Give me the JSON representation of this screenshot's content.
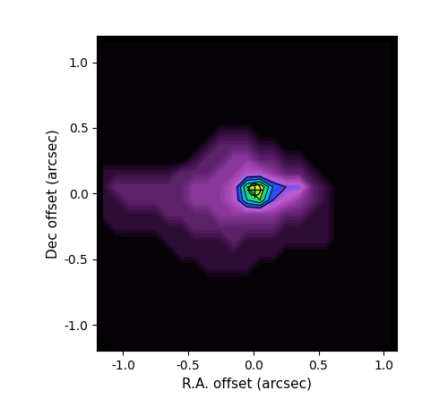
{
  "chart_data": {
    "type": "heatmap",
    "x_label": "R.A. offset (arcsec)",
    "y_label": "Dec offset (arcsec)",
    "xlim": [
      -1.2,
      1.1
    ],
    "ylim": [
      -1.2,
      1.2
    ],
    "xticks": [
      -1.0,
      -0.5,
      0.0,
      0.5,
      1.0
    ],
    "yticks": [
      -1.0,
      -0.5,
      0.0,
      0.5,
      1.0
    ],
    "zlim": [
      0,
      10
    ],
    "contour_levels": [
      5,
      6,
      7,
      8
    ],
    "points": {
      "x": [
        0.01
      ],
      "y": [
        0.03
      ],
      "marker": "circled_plus"
    },
    "x": [
      -1.15,
      -1.05,
      -0.95,
      -0.85,
      -0.75,
      -0.65,
      -0.55,
      -0.45,
      -0.35,
      -0.25,
      -0.15,
      -0.05,
      0.05,
      0.15,
      0.25,
      0.35,
      0.45,
      0.55,
      0.65,
      0.75,
      0.85,
      0.95,
      1.05
    ],
    "y": [
      1.15,
      1.05,
      0.95,
      0.85,
      0.75,
      0.65,
      0.55,
      0.45,
      0.35,
      0.25,
      0.15,
      0.05,
      -0.05,
      -0.15,
      -0.25,
      -0.35,
      -0.45,
      -0.55,
      -0.65,
      -0.75,
      -0.85,
      -0.95,
      -1.05,
      -1.15
    ],
    "cells": [
      [
        0,
        0,
        0,
        0,
        0,
        0,
        0,
        0,
        0,
        0,
        0,
        0,
        0,
        0,
        0,
        0,
        0,
        0,
        0,
        0,
        0,
        0,
        0
      ],
      [
        0,
        0,
        0,
        0,
        0,
        0,
        0,
        0,
        0,
        0,
        0,
        0,
        0,
        0,
        0,
        0,
        0,
        0,
        0,
        0,
        0,
        0,
        0
      ],
      [
        0,
        0,
        0,
        0,
        0,
        0,
        0,
        0,
        0,
        0,
        0,
        0,
        0,
        0,
        0,
        0,
        0,
        0,
        0,
        0,
        0,
        0,
        0
      ],
      [
        0,
        0,
        0,
        0,
        0,
        0,
        0,
        0,
        0,
        0,
        0,
        0,
        0,
        0,
        0,
        0,
        0,
        0,
        0,
        0,
        0,
        0,
        0
      ],
      [
        0,
        0,
        0,
        0,
        0,
        0,
        0,
        0,
        0,
        0,
        0,
        0,
        0,
        0,
        0,
        0,
        0,
        0,
        0,
        0,
        0,
        0,
        0
      ],
      [
        0,
        0,
        0,
        0,
        0,
        0,
        0,
        0,
        0,
        0,
        0,
        0,
        0,
        0,
        0,
        0,
        0,
        0,
        0,
        0,
        0,
        0,
        0
      ],
      [
        0,
        0,
        0,
        0,
        0,
        0,
        0,
        0,
        0,
        0,
        0,
        0,
        0,
        0,
        0,
        0,
        0,
        0,
        0,
        0,
        0,
        0,
        0
      ],
      [
        0,
        0,
        0,
        0,
        0,
        0,
        0,
        0,
        0,
        1,
        1,
        1,
        0,
        0,
        0,
        0,
        0,
        0,
        0,
        0,
        0,
        0,
        0
      ],
      [
        0,
        0,
        0,
        0,
        0,
        0,
        0,
        0,
        1,
        2,
        2,
        2,
        1,
        1,
        0,
        0,
        0,
        0,
        0,
        0,
        0,
        0,
        0
      ],
      [
        0,
        0,
        0,
        0,
        0,
        0,
        0,
        1,
        2,
        2,
        3,
        3,
        2,
        2,
        1,
        1,
        0,
        0,
        0,
        0,
        0,
        0,
        0
      ],
      [
        1,
        1,
        1,
        1,
        1,
        1,
        2,
        2,
        2,
        3,
        3,
        4,
        4,
        3,
        2,
        2,
        1,
        0,
        0,
        0,
        0,
        0,
        0
      ],
      [
        1,
        2,
        2,
        2,
        2,
        2,
        2,
        3,
        3,
        3,
        4,
        8,
        9,
        6,
        5,
        5,
        2,
        1,
        0,
        0,
        0,
        0,
        0
      ],
      [
        1,
        1,
        2,
        2,
        2,
        2,
        2,
        3,
        3,
        3,
        4,
        7,
        8,
        5,
        4,
        3,
        2,
        1,
        0,
        0,
        0,
        0,
        0
      ],
      [
        1,
        1,
        1,
        1,
        1,
        2,
        2,
        2,
        2,
        3,
        3,
        3,
        3,
        3,
        2,
        2,
        1,
        1,
        0,
        0,
        0,
        0,
        0
      ],
      [
        0,
        1,
        1,
        1,
        1,
        1,
        1,
        2,
        2,
        2,
        2,
        2,
        2,
        2,
        1,
        1,
        1,
        1,
        0,
        0,
        0,
        0,
        0
      ],
      [
        0,
        0,
        0,
        0,
        0,
        1,
        1,
        1,
        1,
        1,
        2,
        1,
        1,
        1,
        1,
        1,
        1,
        1,
        0,
        0,
        0,
        0,
        0
      ],
      [
        0,
        0,
        0,
        0,
        0,
        0,
        1,
        1,
        1,
        1,
        1,
        1,
        1,
        1,
        0,
        0,
        0,
        0,
        0,
        0,
        0,
        0,
        0
      ],
      [
        0,
        0,
        0,
        0,
        0,
        0,
        0,
        0,
        1,
        1,
        1,
        1,
        0,
        0,
        0,
        0,
        0,
        0,
        0,
        0,
        0,
        0,
        0
      ],
      [
        0,
        0,
        0,
        0,
        0,
        0,
        0,
        0,
        0,
        0,
        0,
        0,
        0,
        0,
        0,
        0,
        0,
        0,
        0,
        0,
        0,
        0,
        0
      ],
      [
        0,
        0,
        0,
        0,
        0,
        0,
        0,
        0,
        0,
        0,
        0,
        0,
        0,
        0,
        0,
        0,
        0,
        0,
        0,
        0,
        0,
        0,
        0
      ],
      [
        0,
        0,
        0,
        0,
        0,
        0,
        0,
        0,
        0,
        0,
        0,
        0,
        0,
        0,
        0,
        0,
        0,
        0,
        0,
        0,
        0,
        0,
        0
      ],
      [
        0,
        0,
        0,
        0,
        0,
        0,
        0,
        0,
        0,
        0,
        0,
        0,
        0,
        0,
        0,
        0,
        0,
        0,
        0,
        0,
        0,
        0,
        0
      ],
      [
        0,
        0,
        0,
        0,
        0,
        0,
        0,
        0,
        0,
        0,
        0,
        0,
        0,
        0,
        0,
        0,
        0,
        0,
        0,
        0,
        0,
        0,
        0
      ],
      [
        0,
        0,
        0,
        0,
        0,
        0,
        0,
        0,
        0,
        0,
        0,
        0,
        0,
        0,
        0,
        0,
        0,
        0,
        0,
        0,
        0,
        0,
        0
      ]
    ]
  }
}
